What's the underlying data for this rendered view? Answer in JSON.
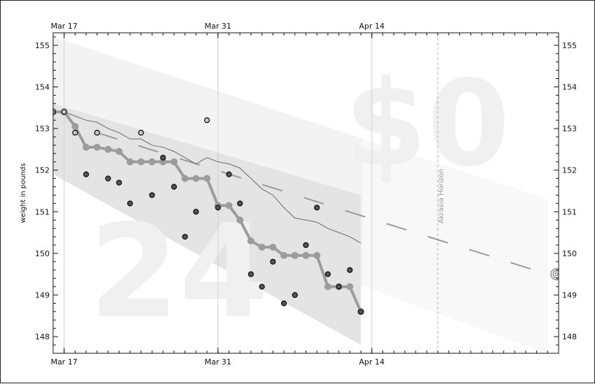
{
  "chart_data": {
    "type": "scatter",
    "ylabel": "weight in pounds",
    "x_tick_labels": [
      "Mar 17",
      "Mar 31",
      "Apr 14"
    ],
    "x_ticks": [
      "2015-03-17",
      "2015-03-31",
      "2015-04-14"
    ],
    "xlim": [
      "2015-03-16",
      "2015-05-01"
    ],
    "ylim": [
      147.6,
      155.3
    ],
    "y_ticks": [
      148,
      149,
      150,
      151,
      152,
      153,
      154,
      155
    ],
    "y_tick_labels_left": [
      "148",
      "149",
      "150",
      "151",
      "152",
      "153",
      "154",
      "155"
    ],
    "y_tick_labels_right": [
      "148",
      "149",
      "150",
      "151",
      "152",
      "153",
      "154",
      "155"
    ],
    "watermark_amount": "$0",
    "watermark_days": "24",
    "akrasia_horizon": {
      "date": "2015-04-20",
      "label": "Akrasia Horizon"
    },
    "series": [
      {
        "role": "datapoints",
        "points": [
          {
            "x": "2015-03-16",
            "y": 153.4
          },
          {
            "x": "2015-03-17",
            "y": 153.4
          },
          {
            "x": "2015-03-18",
            "y": 152.9
          },
          {
            "x": "2015-03-19",
            "y": 151.9
          },
          {
            "x": "2015-03-20",
            "y": 152.9
          },
          {
            "x": "2015-03-21",
            "y": 151.8
          },
          {
            "x": "2015-03-22",
            "y": 151.7
          },
          {
            "x": "2015-03-23",
            "y": 151.2
          },
          {
            "x": "2015-03-24",
            "y": 152.9
          },
          {
            "x": "2015-03-25",
            "y": 151.4
          },
          {
            "x": "2015-03-26",
            "y": 152.3
          },
          {
            "x": "2015-03-27",
            "y": 151.6
          },
          {
            "x": "2015-03-28",
            "y": 150.4
          },
          {
            "x": "2015-03-29",
            "y": 151.0
          },
          {
            "x": "2015-03-30",
            "y": 153.2
          },
          {
            "x": "2015-03-31",
            "y": 151.1
          },
          {
            "x": "2015-04-01",
            "y": 151.9
          },
          {
            "x": "2015-04-02",
            "y": 151.2
          },
          {
            "x": "2015-04-03",
            "y": 149.5
          },
          {
            "x": "2015-04-04",
            "y": 149.2
          },
          {
            "x": "2015-04-05",
            "y": 149.8
          },
          {
            "x": "2015-04-06",
            "y": 148.8
          },
          {
            "x": "2015-04-07",
            "y": 149.0
          },
          {
            "x": "2015-04-08",
            "y": 150.2
          },
          {
            "x": "2015-04-09",
            "y": 151.1
          },
          {
            "x": "2015-04-10",
            "y": 149.5
          },
          {
            "x": "2015-04-11",
            "y": 149.2
          },
          {
            "x": "2015-04-12",
            "y": 149.6
          },
          {
            "x": "2015-04-13",
            "y": 148.6
          }
        ]
      },
      {
        "role": "step-line",
        "points": [
          {
            "x": "2015-03-16",
            "y": 153.4
          },
          {
            "x": "2015-03-17",
            "y": 153.4
          },
          {
            "x": "2015-03-18",
            "y": 153.05
          },
          {
            "x": "2015-03-19",
            "y": 152.55
          },
          {
            "x": "2015-03-20",
            "y": 152.55
          },
          {
            "x": "2015-03-21",
            "y": 152.5
          },
          {
            "x": "2015-03-22",
            "y": 152.45
          },
          {
            "x": "2015-03-23",
            "y": 152.2
          },
          {
            "x": "2015-03-24",
            "y": 152.2
          },
          {
            "x": "2015-03-25",
            "y": 152.2
          },
          {
            "x": "2015-03-26",
            "y": 152.2
          },
          {
            "x": "2015-03-27",
            "y": 152.2
          },
          {
            "x": "2015-03-28",
            "y": 151.8
          },
          {
            "x": "2015-03-29",
            "y": 151.8
          },
          {
            "x": "2015-03-30",
            "y": 151.8
          },
          {
            "x": "2015-03-31",
            "y": 151.15
          },
          {
            "x": "2015-04-01",
            "y": 151.15
          },
          {
            "x": "2015-04-02",
            "y": 150.8
          },
          {
            "x": "2015-04-03",
            "y": 150.3
          },
          {
            "x": "2015-04-04",
            "y": 150.15
          },
          {
            "x": "2015-04-05",
            "y": 150.15
          },
          {
            "x": "2015-04-06",
            "y": 149.95
          },
          {
            "x": "2015-04-07",
            "y": 149.95
          },
          {
            "x": "2015-04-08",
            "y": 149.95
          },
          {
            "x": "2015-04-09",
            "y": 149.95
          },
          {
            "x": "2015-04-10",
            "y": 149.2
          },
          {
            "x": "2015-04-11",
            "y": 149.2
          },
          {
            "x": "2015-04-12",
            "y": 149.2
          },
          {
            "x": "2015-04-13",
            "y": 148.6
          }
        ]
      },
      {
        "role": "moving-average",
        "points": [
          {
            "x": "2015-03-16",
            "y": 153.4
          },
          {
            "x": "2015-03-17",
            "y": 153.4
          },
          {
            "x": "2015-03-18",
            "y": 153.3
          },
          {
            "x": "2015-03-19",
            "y": 153.2
          },
          {
            "x": "2015-03-20",
            "y": 153.15
          },
          {
            "x": "2015-03-21",
            "y": 153.0
          },
          {
            "x": "2015-03-22",
            "y": 152.9
          },
          {
            "x": "2015-03-23",
            "y": 152.75
          },
          {
            "x": "2015-03-24",
            "y": 152.75
          },
          {
            "x": "2015-03-25",
            "y": 152.6
          },
          {
            "x": "2015-03-26",
            "y": 152.55
          },
          {
            "x": "2015-03-27",
            "y": 152.45
          },
          {
            "x": "2015-03-28",
            "y": 152.3
          },
          {
            "x": "2015-03-29",
            "y": 152.15
          },
          {
            "x": "2015-03-30",
            "y": 152.3
          },
          {
            "x": "2015-03-31",
            "y": 152.2
          },
          {
            "x": "2015-04-01",
            "y": 152.15
          },
          {
            "x": "2015-04-02",
            "y": 152.05
          },
          {
            "x": "2015-04-03",
            "y": 151.8
          },
          {
            "x": "2015-04-04",
            "y": 151.55
          },
          {
            "x": "2015-04-05",
            "y": 151.4
          },
          {
            "x": "2015-04-06",
            "y": 151.1
          },
          {
            "x": "2015-04-07",
            "y": 150.85
          },
          {
            "x": "2015-04-08",
            "y": 150.8
          },
          {
            "x": "2015-04-09",
            "y": 150.75
          },
          {
            "x": "2015-04-10",
            "y": 150.6
          },
          {
            "x": "2015-04-11",
            "y": 150.5
          },
          {
            "x": "2015-04-12",
            "y": 150.4
          },
          {
            "x": "2015-04-13",
            "y": 150.25
          }
        ]
      },
      {
        "role": "road-center-dashed",
        "points": [
          {
            "x": "2015-03-20",
            "y": 152.9
          },
          {
            "x": "2015-04-30",
            "y": 149.5
          }
        ]
      },
      {
        "role": "road-upper-edge",
        "points": [
          {
            "x": "2015-03-16",
            "y": 155.2
          },
          {
            "x": "2015-04-30",
            "y": 151.3
          }
        ]
      },
      {
        "role": "road-lower-edge",
        "points": [
          {
            "x": "2015-03-16",
            "y": 151.9
          },
          {
            "x": "2015-04-30",
            "y": 147.6
          }
        ]
      },
      {
        "role": "safety-band-lower",
        "points": [
          {
            "x": "2015-03-16",
            "y": 153.6
          },
          {
            "x": "2015-04-13",
            "y": 151.4
          },
          {
            "x": "2015-04-13",
            "y": 147.8
          },
          {
            "x": "2015-03-16",
            "y": 151.9
          }
        ]
      }
    ]
  }
}
